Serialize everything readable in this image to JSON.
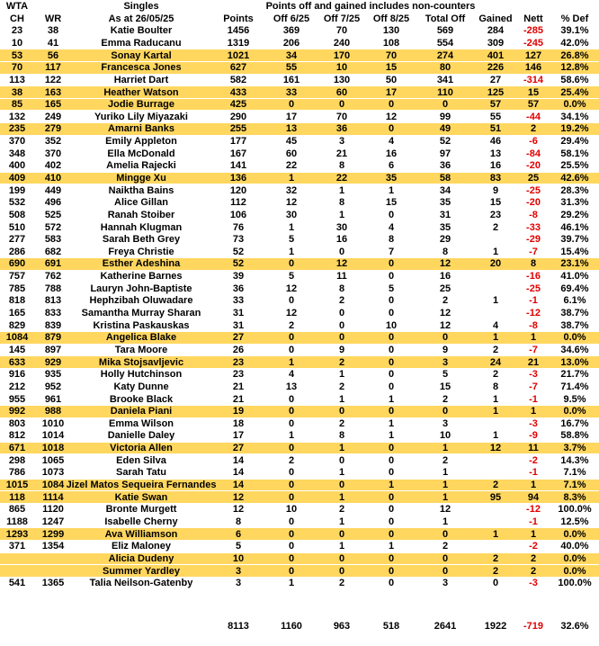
{
  "header": {
    "group1": "WTA",
    "singles": "Singles",
    "note": "Points off and gained includes non-counters",
    "columns": [
      "CH",
      "WR",
      "As at 26/05/25",
      "Points",
      "Off 6/25",
      "Off 7/25",
      "Off 8/25",
      "Total Off",
      "Gained",
      "Nett",
      "% Def"
    ]
  },
  "colors": {
    "highlight": "#ffd75f",
    "negative": "#e00000"
  },
  "rows": [
    {
      "hl": false,
      "cells": [
        "23",
        "38",
        "Katie Boulter",
        "1456",
        "369",
        "70",
        "130",
        "569",
        "284",
        "-285",
        "39.1%"
      ]
    },
    {
      "hl": false,
      "cells": [
        "10",
        "41",
        "Emma Raducanu",
        "1319",
        "206",
        "240",
        "108",
        "554",
        "309",
        "-245",
        "42.0%"
      ]
    },
    {
      "hl": true,
      "cells": [
        "53",
        "56",
        "Sonay Kartal",
        "1021",
        "34",
        "170",
        "70",
        "274",
        "401",
        "127",
        "26.8%"
      ]
    },
    {
      "hl": true,
      "cells": [
        "70",
        "117",
        "Francesca Jones",
        "627",
        "55",
        "10",
        "15",
        "80",
        "226",
        "146",
        "12.8%"
      ]
    },
    {
      "hl": false,
      "cells": [
        "113",
        "122",
        "Harriet Dart",
        "582",
        "161",
        "130",
        "50",
        "341",
        "27",
        "-314",
        "58.6%"
      ]
    },
    {
      "hl": true,
      "cells": [
        "38",
        "163",
        "Heather Watson",
        "433",
        "33",
        "60",
        "17",
        "110",
        "125",
        "15",
        "25.4%"
      ]
    },
    {
      "hl": true,
      "cells": [
        "85",
        "165",
        "Jodie Burrage",
        "425",
        "0",
        "0",
        "0",
        "0",
        "57",
        "57",
        "0.0%"
      ]
    },
    {
      "hl": false,
      "cells": [
        "132",
        "249",
        "Yuriko Lily Miyazaki",
        "290",
        "17",
        "70",
        "12",
        "99",
        "55",
        "-44",
        "34.1%"
      ]
    },
    {
      "hl": true,
      "cells": [
        "235",
        "279",
        "Amarni Banks",
        "255",
        "13",
        "36",
        "0",
        "49",
        "51",
        "2",
        "19.2%"
      ]
    },
    {
      "hl": false,
      "cells": [
        "370",
        "352",
        "Emily Appleton",
        "177",
        "45",
        "3",
        "4",
        "52",
        "46",
        "-6",
        "29.4%"
      ]
    },
    {
      "hl": false,
      "cells": [
        "348",
        "370",
        "Ella McDonald",
        "167",
        "60",
        "21",
        "16",
        "97",
        "13",
        "-84",
        "58.1%"
      ]
    },
    {
      "hl": false,
      "cells": [
        "400",
        "402",
        "Amelia Rajecki",
        "141",
        "22",
        "8",
        "6",
        "36",
        "16",
        "-20",
        "25.5%"
      ]
    },
    {
      "hl": true,
      "cells": [
        "409",
        "410",
        "Mingge Xu",
        "136",
        "1",
        "22",
        "35",
        "58",
        "83",
        "25",
        "42.6%"
      ]
    },
    {
      "hl": false,
      "cells": [
        "199",
        "449",
        "Naiktha Bains",
        "120",
        "32",
        "1",
        "1",
        "34",
        "9",
        "-25",
        "28.3%"
      ]
    },
    {
      "hl": false,
      "cells": [
        "532",
        "496",
        "Alice Gillan",
        "112",
        "12",
        "8",
        "15",
        "35",
        "15",
        "-20",
        "31.3%"
      ]
    },
    {
      "hl": false,
      "cells": [
        "508",
        "525",
        "Ranah Stoiber",
        "106",
        "30",
        "1",
        "0",
        "31",
        "23",
        "-8",
        "29.2%"
      ]
    },
    {
      "hl": false,
      "cells": [
        "510",
        "572",
        "Hannah Klugman",
        "76",
        "1",
        "30",
        "4",
        "35",
        "2",
        "-33",
        "46.1%"
      ]
    },
    {
      "hl": false,
      "cells": [
        "277",
        "583",
        "Sarah Beth Grey",
        "73",
        "5",
        "16",
        "8",
        "29",
        "",
        "-29",
        "39.7%"
      ]
    },
    {
      "hl": false,
      "cells": [
        "286",
        "682",
        "Freya Christie",
        "52",
        "1",
        "0",
        "7",
        "8",
        "1",
        "-7",
        "15.4%"
      ]
    },
    {
      "hl": true,
      "cells": [
        "690",
        "691",
        "Esther Adeshina",
        "52",
        "0",
        "12",
        "0",
        "12",
        "20",
        "8",
        "23.1%"
      ]
    },
    {
      "hl": false,
      "cells": [
        "757",
        "762",
        "Katherine Barnes",
        "39",
        "5",
        "11",
        "0",
        "16",
        "",
        "-16",
        "41.0%"
      ]
    },
    {
      "hl": false,
      "cells": [
        "785",
        "788",
        "Lauryn John-Baptiste",
        "36",
        "12",
        "8",
        "5",
        "25",
        "",
        "-25",
        "69.4%"
      ]
    },
    {
      "hl": false,
      "cells": [
        "818",
        "813",
        "Hephzibah Oluwadare",
        "33",
        "0",
        "2",
        "0",
        "2",
        "1",
        "-1",
        "6.1%"
      ]
    },
    {
      "hl": false,
      "cells": [
        "165",
        "833",
        "Samantha Murray Sharan",
        "31",
        "12",
        "0",
        "0",
        "12",
        "",
        "-12",
        "38.7%"
      ]
    },
    {
      "hl": false,
      "cells": [
        "829",
        "839",
        "Kristina Paskauskas",
        "31",
        "2",
        "0",
        "10",
        "12",
        "4",
        "-8",
        "38.7%"
      ]
    },
    {
      "hl": true,
      "cells": [
        "1084",
        "879",
        "Angelica Blake",
        "27",
        "0",
        "0",
        "0",
        "0",
        "1",
        "1",
        "0.0%"
      ]
    },
    {
      "hl": false,
      "cells": [
        "145",
        "897",
        "Tara Moore",
        "26",
        "0",
        "9",
        "0",
        "9",
        "2",
        "-7",
        "34.6%"
      ]
    },
    {
      "hl": true,
      "cells": [
        "633",
        "929",
        "Mika Stojsavljevic",
        "23",
        "1",
        "2",
        "0",
        "3",
        "24",
        "21",
        "13.0%"
      ]
    },
    {
      "hl": false,
      "cells": [
        "916",
        "935",
        "Holly Hutchinson",
        "23",
        "4",
        "1",
        "0",
        "5",
        "2",
        "-3",
        "21.7%"
      ]
    },
    {
      "hl": false,
      "cells": [
        "212",
        "952",
        "Katy Dunne",
        "21",
        "13",
        "2",
        "0",
        "15",
        "8",
        "-7",
        "71.4%"
      ]
    },
    {
      "hl": false,
      "cells": [
        "955",
        "961",
        "Brooke Black",
        "21",
        "0",
        "1",
        "1",
        "2",
        "1",
        "-1",
        "9.5%"
      ]
    },
    {
      "hl": true,
      "cells": [
        "992",
        "988",
        "Daniela Piani",
        "19",
        "0",
        "0",
        "0",
        "0",
        "1",
        "1",
        "0.0%"
      ]
    },
    {
      "hl": false,
      "cells": [
        "803",
        "1010",
        "Emma Wilson",
        "18",
        "0",
        "2",
        "1",
        "3",
        "",
        "-3",
        "16.7%"
      ]
    },
    {
      "hl": false,
      "cells": [
        "812",
        "1014",
        "Danielle Daley",
        "17",
        "1",
        "8",
        "1",
        "10",
        "1",
        "-9",
        "58.8%"
      ]
    },
    {
      "hl": true,
      "cells": [
        "671",
        "1018",
        "Victoria Allen",
        "27",
        "0",
        "1",
        "0",
        "1",
        "12",
        "11",
        "3.7%"
      ]
    },
    {
      "hl": false,
      "cells": [
        "298",
        "1065",
        "Eden Silva",
        "14",
        "2",
        "0",
        "0",
        "2",
        "",
        "-2",
        "14.3%"
      ]
    },
    {
      "hl": false,
      "cells": [
        "786",
        "1073",
        "Sarah Tatu",
        "14",
        "0",
        "1",
        "0",
        "1",
        "",
        "-1",
        "7.1%"
      ]
    },
    {
      "hl": true,
      "cells": [
        "1015",
        "1084",
        "Jizel Matos Sequeira Fernandes",
        "14",
        "0",
        "0",
        "1",
        "1",
        "2",
        "1",
        "7.1%"
      ]
    },
    {
      "hl": true,
      "cells": [
        "118",
        "1114",
        "Katie Swan",
        "12",
        "0",
        "1",
        "0",
        "1",
        "95",
        "94",
        "8.3%"
      ]
    },
    {
      "hl": false,
      "cells": [
        "865",
        "1120",
        "Bronte Murgett",
        "12",
        "10",
        "2",
        "0",
        "12",
        "",
        "-12",
        "100.0%"
      ]
    },
    {
      "hl": false,
      "cells": [
        "1188",
        "1247",
        "Isabelle Cherny",
        "8",
        "0",
        "1",
        "0",
        "1",
        "",
        "-1",
        "12.5%"
      ]
    },
    {
      "hl": true,
      "cells": [
        "1293",
        "1299",
        "Ava Williamson",
        "6",
        "0",
        "0",
        "0",
        "0",
        "1",
        "1",
        "0.0%"
      ]
    },
    {
      "hl": false,
      "cells": [
        "371",
        "1354",
        "Eliz Maloney",
        "5",
        "0",
        "1",
        "1",
        "2",
        "",
        "-2",
        "40.0%"
      ]
    },
    {
      "hl": true,
      "cells": [
        "",
        "",
        "Alicia Dudeny",
        "10",
        "0",
        "0",
        "0",
        "0",
        "2",
        "2",
        "0.0%"
      ]
    },
    {
      "hl": true,
      "cells": [
        "",
        "",
        "Summer Yardley",
        "3",
        "0",
        "0",
        "0",
        "0",
        "2",
        "2",
        "0.0%"
      ]
    },
    {
      "hl": false,
      "cells": [
        "541",
        "1365",
        "Talia Neilson-Gatenby",
        "3",
        "1",
        "2",
        "0",
        "3",
        "0",
        "-3",
        "100.0%"
      ]
    }
  ],
  "totals": {
    "cells": [
      "",
      "",
      "",
      "8113",
      "1160",
      "963",
      "518",
      "2641",
      "1922",
      "-719",
      "32.6%"
    ]
  }
}
